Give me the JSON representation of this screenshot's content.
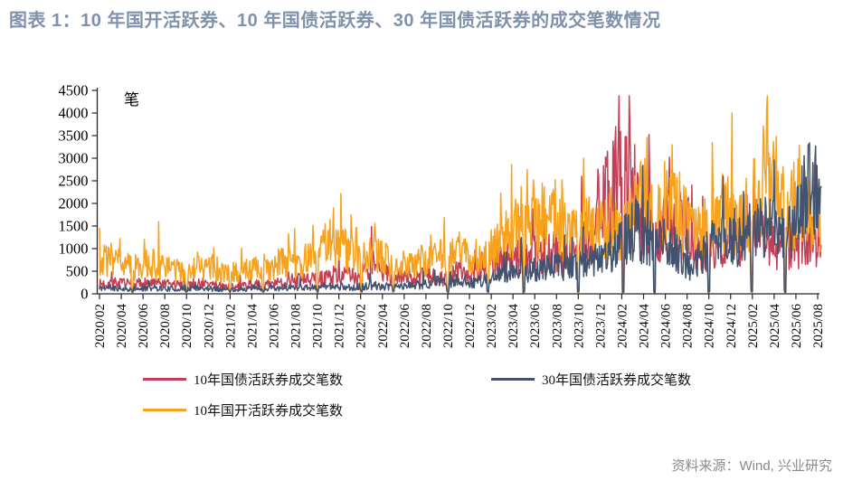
{
  "title": "图表 1：10 年国开活跃券、10 年国债活跃券、30 年国债活跃券的成交笔数情况",
  "unit_label": "笔",
  "source": "资料来源：Wind, 兴业研究",
  "colors": {
    "title": "#7F91AB",
    "axis": "#262626",
    "source_text": "#8A8A8A",
    "red": "#C43F56",
    "navy": "#42536F",
    "orange": "#F6A21F"
  },
  "chart_data": {
    "type": "line",
    "title": "图表 1：10 年国开活跃券、10 年国债活跃券、30 年国债活跃券的成交笔数情况",
    "xlabel": "",
    "ylabel": "笔",
    "ylim": [
      0,
      4500
    ],
    "yticks": [
      0,
      500,
      1000,
      1500,
      2000,
      2500,
      3000,
      3500,
      4000,
      4500
    ],
    "xtick_labels": [
      "2020/02",
      "2020/04",
      "2020/06",
      "2020/08",
      "2020/10",
      "2020/12",
      "2021/02",
      "2021/04",
      "2021/06",
      "2021/08",
      "2021/10",
      "2021/12",
      "2022/02",
      "2022/04",
      "2022/06",
      "2022/08",
      "2022/10",
      "2022/12",
      "2023/02",
      "2023/04",
      "2023/06",
      "2023/08",
      "2023/10",
      "2023/12",
      "2024/02",
      "2024/04",
      "2024/06",
      "2024/08",
      "2024/10",
      "2024/12",
      "2025/02",
      "2025/04",
      "2025/06",
      "2025/08"
    ],
    "grid": false,
    "legend_position": "bottom",
    "x_range": [
      "2020/02",
      "2025/08"
    ],
    "anchor_interval": "monthly",
    "draw_order": [
      0,
      2,
      1
    ],
    "holiday_dips": [
      3.0,
      8.0,
      12.0,
      15.0,
      20.0,
      24.05,
      27.0,
      32.0,
      35.7,
      39.0,
      44.0,
      48.15,
      51.0,
      56.0,
      59.95,
      63.0
    ],
    "series": [
      {
        "name": "10年国债活跃券成交笔数",
        "color": "#C43F56",
        "seed": 7,
        "monthly_levels": [
          200,
          240,
          220,
          200,
          240,
          220,
          200,
          190,
          200,
          220,
          200,
          180,
          150,
          180,
          200,
          190,
          200,
          250,
          300,
          280,
          300,
          350,
          420,
          350,
          400,
          550,
          500,
          320,
          350,
          300,
          400,
          350,
          320,
          500,
          450,
          500,
          700,
          800,
          700,
          800,
          900,
          800,
          900,
          800,
          950,
          1200,
          1700,
          2100,
          2300,
          2400,
          1500,
          1150,
          1500,
          1350,
          1500,
          1000,
          800,
          1000,
          1150,
          1100,
          1250,
          1200,
          1000,
          900,
          1050,
          1250,
          1100
        ],
        "spikes": [
          [
            44.3,
            2600
          ],
          [
            45.8,
            2760
          ],
          [
            46.6,
            2950
          ],
          [
            47.45,
            3700
          ],
          [
            48.3,
            3480
          ],
          [
            49.2,
            3300
          ],
          [
            52.4,
            3020
          ]
        ]
      },
      {
        "name": "30年国债活跃券成交笔数",
        "color": "#42536F",
        "seed": 11,
        "monthly_levels": [
          120,
          130,
          110,
          100,
          120,
          130,
          110,
          100,
          110,
          120,
          110,
          100,
          85,
          100,
          110,
          100,
          120,
          130,
          140,
          130,
          140,
          150,
          160,
          140,
          150,
          180,
          160,
          140,
          160,
          180,
          220,
          250,
          220,
          280,
          260,
          260,
          350,
          400,
          500,
          450,
          500,
          550,
          600,
          520,
          600,
          700,
          800,
          900,
          1050,
          1400,
          1200,
          1000,
          1100,
          900,
          520,
          700,
          1000,
          1100,
          1200,
          1150,
          1300,
          1400,
          1300,
          1250,
          1500,
          2100,
          2350
        ],
        "spikes": [
          [
            49.3,
            2100
          ],
          [
            65.15,
            3300
          ],
          [
            65.8,
            3270
          ]
        ]
      },
      {
        "name": "10年国开活跃券成交笔数",
        "color": "#F6A21F",
        "seed": 3,
        "monthly_levels": [
          700,
          780,
          640,
          520,
          600,
          640,
          560,
          500,
          460,
          600,
          560,
          520,
          380,
          460,
          520,
          560,
          600,
          660,
          620,
          700,
          820,
          1050,
          1000,
          820,
          760,
          900,
          820,
          520,
          620,
          560,
          780,
          880,
          700,
          880,
          720,
          620,
          900,
          1100,
          1300,
          1550,
          1400,
          1500,
          1650,
          1300,
          1150,
          1400,
          1300,
          1500,
          1150,
          1600,
          1950,
          1500,
          1700,
          2050,
          1400,
          1250,
          1500,
          1700,
          1600,
          1500,
          1800,
          2500,
          2150,
          1700,
          1900,
          1750,
          1800
        ],
        "spikes": [
          [
            21.5,
            1900
          ],
          [
            23.1,
            1750
          ],
          [
            25.3,
            1560
          ],
          [
            39.3,
            2750
          ],
          [
            42.5,
            2520
          ],
          [
            44.5,
            3000
          ],
          [
            50.3,
            3460
          ],
          [
            52.6,
            3300
          ],
          [
            61.3,
            4130
          ],
          [
            62.2,
            3480
          ]
        ]
      }
    ]
  }
}
